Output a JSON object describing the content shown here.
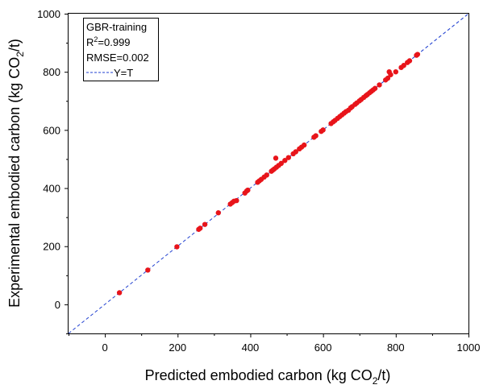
{
  "chart_data": {
    "type": "scatter",
    "legend": {
      "title": "GBR-training",
      "r2_prefix": "R",
      "r2_sup": "2",
      "r2_suffix": "=0.999",
      "rmse": "RMSE=0.002",
      "line_label": "Y=T",
      "placement": "top-left"
    },
    "xlabel": {
      "main": "Predicted embodied carbon (kg CO",
      "sub": "2",
      "tail": "/t)"
    },
    "ylabel": {
      "main": "Experimental embodied carbon (kg CO",
      "sub": "2",
      "tail": "/t)"
    },
    "xlim": [
      -100,
      1000
    ],
    "ylim": [
      -100,
      1000
    ],
    "xticks": [
      0,
      200,
      400,
      600,
      800,
      1000
    ],
    "yticks": [
      0,
      200,
      400,
      600,
      800,
      1000
    ],
    "reference_line": {
      "name": "Y=T",
      "from": [
        -100,
        -100
      ],
      "to": [
        1000,
        1000
      ],
      "color": "#1f3fd0",
      "dash": true
    },
    "marker_color": "#e8141a",
    "points": [
      [
        40,
        40
      ],
      [
        118,
        118
      ],
      [
        198,
        198
      ],
      [
        258,
        258
      ],
      [
        262,
        262
      ],
      [
        275,
        275
      ],
      [
        312,
        315
      ],
      [
        345,
        345
      ],
      [
        350,
        350
      ],
      [
        355,
        355
      ],
      [
        362,
        357
      ],
      [
        385,
        383
      ],
      [
        390,
        390
      ],
      [
        393,
        393
      ],
      [
        420,
        420
      ],
      [
        425,
        425
      ],
      [
        430,
        430
      ],
      [
        438,
        438
      ],
      [
        445,
        445
      ],
      [
        458,
        458
      ],
      [
        462,
        462
      ],
      [
        466,
        466
      ],
      [
        470,
        503
      ],
      [
        472,
        472
      ],
      [
        478,
        478
      ],
      [
        485,
        485
      ],
      [
        495,
        495
      ],
      [
        505,
        505
      ],
      [
        518,
        518
      ],
      [
        525,
        525
      ],
      [
        535,
        535
      ],
      [
        541,
        541
      ],
      [
        548,
        548
      ],
      [
        575,
        575
      ],
      [
        580,
        580
      ],
      [
        595,
        595
      ],
      [
        600,
        600
      ],
      [
        622,
        622
      ],
      [
        628,
        628
      ],
      [
        633,
        633
      ],
      [
        640,
        640
      ],
      [
        646,
        646
      ],
      [
        652,
        652
      ],
      [
        658,
        658
      ],
      [
        663,
        663
      ],
      [
        670,
        668
      ],
      [
        676,
        676
      ],
      [
        680,
        680
      ],
      [
        688,
        688
      ],
      [
        693,
        693
      ],
      [
        700,
        700
      ],
      [
        705,
        705
      ],
      [
        712,
        712
      ],
      [
        718,
        718
      ],
      [
        722,
        722
      ],
      [
        728,
        728
      ],
      [
        733,
        733
      ],
      [
        738,
        738
      ],
      [
        743,
        743
      ],
      [
        755,
        755
      ],
      [
        772,
        772
      ],
      [
        778,
        778
      ],
      [
        782,
        800
      ],
      [
        786,
        790
      ],
      [
        800,
        800
      ],
      [
        815,
        815
      ],
      [
        822,
        822
      ],
      [
        832,
        832
      ],
      [
        838,
        838
      ],
      [
        857,
        857
      ],
      [
        860,
        860
      ]
    ]
  }
}
